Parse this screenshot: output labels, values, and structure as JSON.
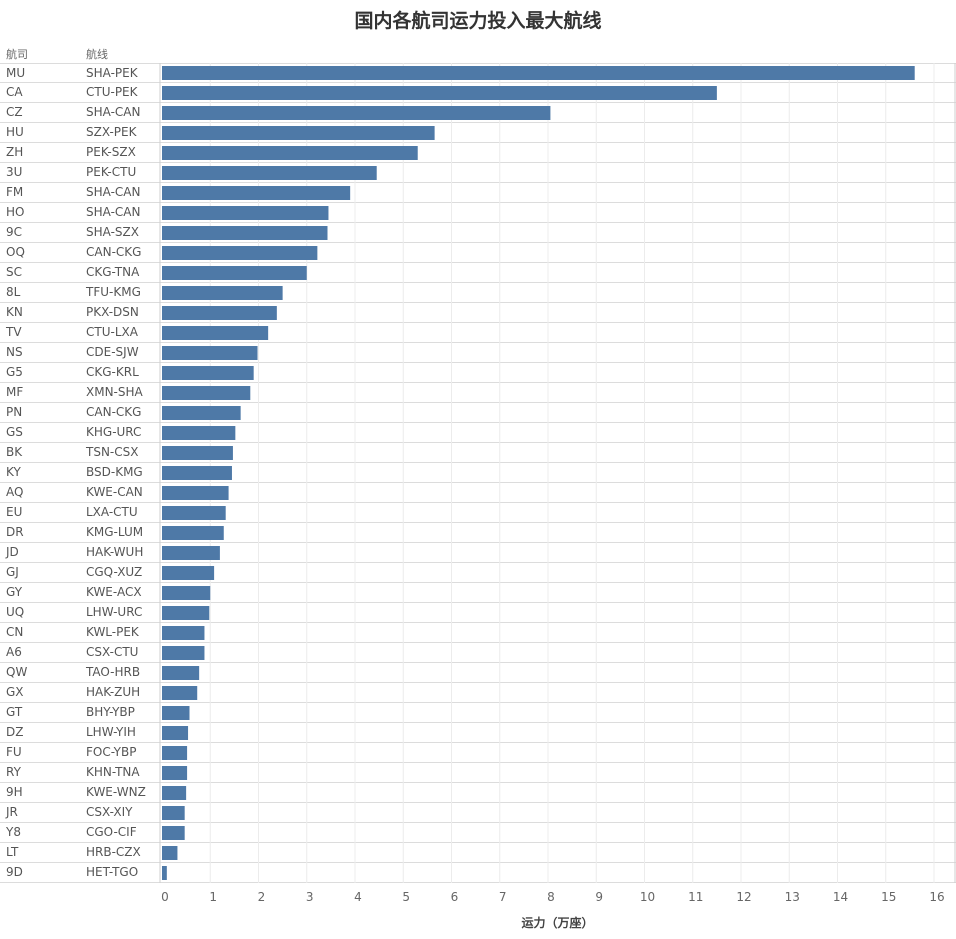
{
  "chart_data": {
    "type": "bar",
    "orientation": "horizontal",
    "title": "国内各航司运力投入最大航线",
    "column_headers": {
      "airline": "航司",
      "route": "航线"
    },
    "xlabel": "运力（万座）",
    "xlim": [
      0,
      16
    ],
    "xticks": [
      0,
      1,
      2,
      3,
      4,
      5,
      6,
      7,
      8,
      9,
      10,
      11,
      12,
      13,
      14,
      15,
      16
    ],
    "grid": true,
    "bar_color": "#4e79a7",
    "rows": [
      {
        "airline": "MU",
        "route": "SHA-PEK",
        "value": 15.6
      },
      {
        "airline": "CA",
        "route": "CTU-PEK",
        "value": 11.5
      },
      {
        "airline": "CZ",
        "route": "SHA-CAN",
        "value": 8.05
      },
      {
        "airline": "HU",
        "route": "SZX-PEK",
        "value": 5.65
      },
      {
        "airline": "ZH",
        "route": "PEK-SZX",
        "value": 5.3
      },
      {
        "airline": "3U",
        "route": "PEK-CTU",
        "value": 4.45
      },
      {
        "airline": "FM",
        "route": "SHA-CAN",
        "value": 3.9
      },
      {
        "airline": "HO",
        "route": "SHA-CAN",
        "value": 3.45
      },
      {
        "airline": "9C",
        "route": "SHA-SZX",
        "value": 3.43
      },
      {
        "airline": "OQ",
        "route": "CAN-CKG",
        "value": 3.22
      },
      {
        "airline": "SC",
        "route": "CKG-TNA",
        "value": 3.0
      },
      {
        "airline": "8L",
        "route": "TFU-KMG",
        "value": 2.5
      },
      {
        "airline": "KN",
        "route": "PKX-DSN",
        "value": 2.38
      },
      {
        "airline": "TV",
        "route": "CTU-LXA",
        "value": 2.2
      },
      {
        "airline": "NS",
        "route": "CDE-SJW",
        "value": 1.98
      },
      {
        "airline": "G5",
        "route": "CKG-KRL",
        "value": 1.9
      },
      {
        "airline": "MF",
        "route": "XMN-SHA",
        "value": 1.83
      },
      {
        "airline": "PN",
        "route": "CAN-CKG",
        "value": 1.63
      },
      {
        "airline": "GS",
        "route": "KHG-URC",
        "value": 1.52
      },
      {
        "airline": "BK",
        "route": "TSN-CSX",
        "value": 1.47
      },
      {
        "airline": "KY",
        "route": "BSD-KMG",
        "value": 1.45
      },
      {
        "airline": "AQ",
        "route": "KWE-CAN",
        "value": 1.38
      },
      {
        "airline": "EU",
        "route": "LXA-CTU",
        "value": 1.32
      },
      {
        "airline": "DR",
        "route": "KMG-LUM",
        "value": 1.28
      },
      {
        "airline": "JD",
        "route": "HAK-WUH",
        "value": 1.2
      },
      {
        "airline": "GJ",
        "route": "CGQ-XUZ",
        "value": 1.08
      },
      {
        "airline": "GY",
        "route": "KWE-ACX",
        "value": 1.0
      },
      {
        "airline": "UQ",
        "route": "LHW-URC",
        "value": 0.98
      },
      {
        "airline": "CN",
        "route": "KWL-PEK",
        "value": 0.88
      },
      {
        "airline": "A6",
        "route": "CSX-CTU",
        "value": 0.88
      },
      {
        "airline": "QW",
        "route": "TAO-HRB",
        "value": 0.77
      },
      {
        "airline": "GX",
        "route": "HAK-ZUH",
        "value": 0.73
      },
      {
        "airline": "GT",
        "route": "BHY-YBP",
        "value": 0.57
      },
      {
        "airline": "DZ",
        "route": "LHW-YIH",
        "value": 0.54
      },
      {
        "airline": "FU",
        "route": "FOC-YBP",
        "value": 0.52
      },
      {
        "airline": "RY",
        "route": "KHN-TNA",
        "value": 0.52
      },
      {
        "airline": "9H",
        "route": "KWE-WNZ",
        "value": 0.5
      },
      {
        "airline": "JR",
        "route": "CSX-XIY",
        "value": 0.47
      },
      {
        "airline": "Y8",
        "route": "CGO-CIF",
        "value": 0.47
      },
      {
        "airline": "LT",
        "route": "HRB-CZX",
        "value": 0.32
      },
      {
        "airline": "9D",
        "route": "HET-TGO",
        "value": 0.1
      }
    ]
  }
}
